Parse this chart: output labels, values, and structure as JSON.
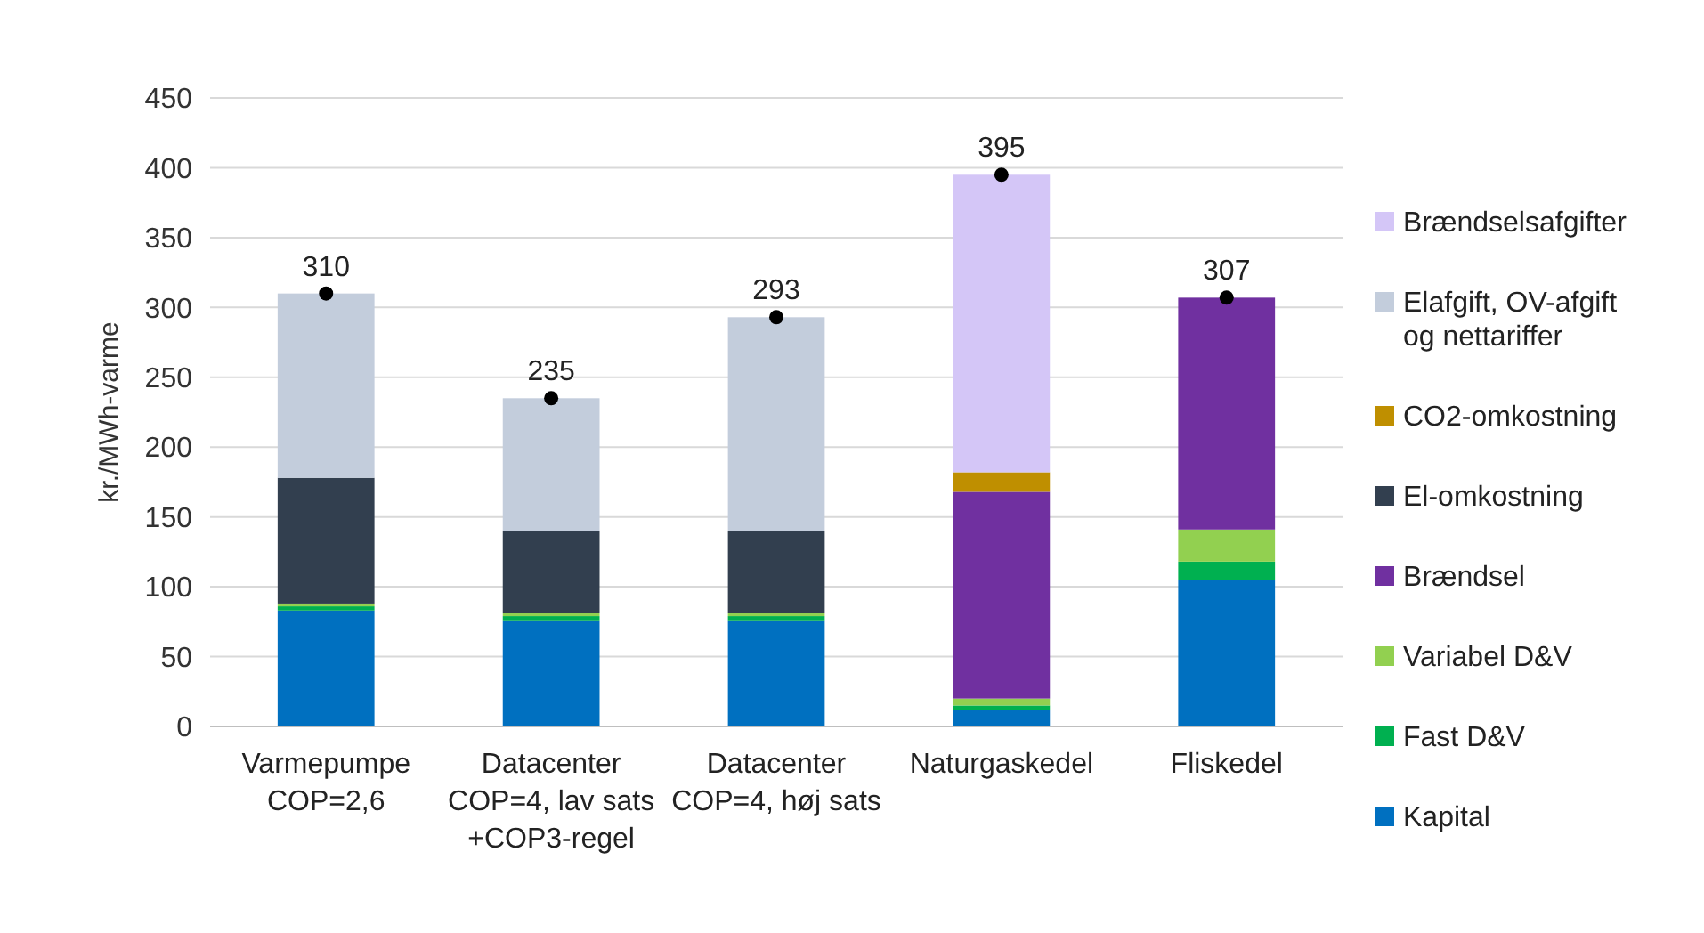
{
  "chart_data": {
    "type": "bar",
    "stacked": true,
    "ylabel": "kr./MWh-varme",
    "categories": [
      "Varmepumpe\nCOP=2,6",
      "Datacenter\nCOP=4, lav sats\n+COP3-regel",
      "Datacenter\nCOP=4, høj sats",
      "Naturgaskedel",
      "Fliskedel"
    ],
    "series": [
      {
        "name": "Kapital",
        "color": "#0070c0",
        "values": [
          83,
          76,
          76,
          12,
          105
        ]
      },
      {
        "name": "Fast D&V",
        "color": "#00b050",
        "values": [
          3,
          3,
          3,
          3,
          13
        ]
      },
      {
        "name": "Variabel D&V",
        "color": "#92d050",
        "values": [
          2,
          2,
          2,
          5,
          23
        ]
      },
      {
        "name": "Brændsel",
        "color": "#7030a0",
        "values": [
          0,
          0,
          0,
          148,
          166
        ]
      },
      {
        "name": "El-omkostning",
        "color": "#323f4f",
        "values": [
          90,
          59,
          59,
          0,
          0
        ]
      },
      {
        "name": "CO2-omkostning",
        "color": "#bf8f00",
        "values": [
          0,
          0,
          0,
          14,
          0
        ]
      },
      {
        "name": "Elafgift, OV-afgift og nettariffer",
        "color": "#c3cddc",
        "values": [
          132,
          95,
          153,
          0,
          0
        ]
      },
      {
        "name": "Brændselsafgifter",
        "color": "#d4c6f7",
        "values": [
          0,
          0,
          0,
          213,
          0
        ]
      },
      {
        "type": "scatter",
        "color": "#000000",
        "marker": "circle",
        "x": [
          "Varmepumpe\nCOP=2,6",
          "Datacenter\nCOP=4, lav sats\n+COP3-regel",
          "Datacenter\nCOP=4, høj sats",
          "Naturgaskedel",
          "Fliskedel"
        ],
        "values": [
          310,
          235,
          293,
          395,
          307
        ]
      }
    ],
    "totals": [
      "310",
      "235",
      "293",
      "395",
      "307"
    ],
    "ylim": [
      0,
      450
    ],
    "yticks": [
      0,
      50,
      100,
      150,
      200,
      250,
      300,
      350,
      400,
      450
    ],
    "grid": "y",
    "legend": "right"
  }
}
